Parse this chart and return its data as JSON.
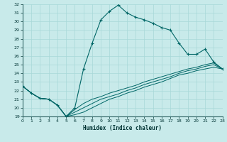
{
  "xlabel": "Humidex (Indice chaleur)",
  "bg_color": "#c8eaea",
  "grid_color": "#a8d8d8",
  "line_color": "#006666",
  "x": [
    0,
    1,
    2,
    3,
    4,
    5,
    6,
    7,
    8,
    9,
    10,
    11,
    12,
    13,
    14,
    15,
    16,
    17,
    18,
    19,
    20,
    21,
    22,
    23
  ],
  "y_main": [
    22.5,
    21.7,
    21.1,
    21.0,
    20.3,
    19.0,
    20.0,
    24.5,
    27.5,
    30.2,
    31.2,
    31.9,
    31.0,
    30.5,
    30.2,
    29.8,
    29.3,
    29.0,
    27.5,
    26.2,
    26.2,
    26.8,
    25.3,
    24.5
  ],
  "y_line2": [
    22.5,
    21.7,
    21.1,
    21.0,
    20.3,
    19.0,
    19.8,
    20.5,
    21.0,
    21.3,
    21.7,
    22.0,
    22.3,
    22.6,
    23.0,
    23.3,
    23.6,
    23.9,
    24.2,
    24.5,
    24.7,
    25.0,
    25.2,
    24.5
  ],
  "y_line3": [
    22.5,
    21.7,
    21.1,
    21.0,
    20.3,
    19.0,
    19.5,
    20.0,
    20.5,
    21.0,
    21.3,
    21.6,
    22.0,
    22.3,
    22.7,
    23.0,
    23.3,
    23.6,
    24.0,
    24.3,
    24.5,
    24.8,
    25.0,
    24.5
  ],
  "y_line4": [
    22.5,
    21.7,
    21.1,
    21.0,
    20.3,
    19.0,
    19.2,
    19.5,
    20.0,
    20.5,
    21.0,
    21.3,
    21.7,
    22.0,
    22.4,
    22.7,
    23.0,
    23.4,
    23.8,
    24.0,
    24.3,
    24.5,
    24.7,
    24.5
  ],
  "ylim": [
    19,
    32
  ],
  "xlim": [
    0,
    23
  ],
  "yticks": [
    19,
    20,
    21,
    22,
    23,
    24,
    25,
    26,
    27,
    28,
    29,
    30,
    31,
    32
  ],
  "xticks": [
    0,
    1,
    2,
    3,
    4,
    5,
    6,
    7,
    8,
    9,
    10,
    11,
    12,
    13,
    14,
    15,
    16,
    17,
    18,
    19,
    20,
    21,
    22,
    23
  ]
}
